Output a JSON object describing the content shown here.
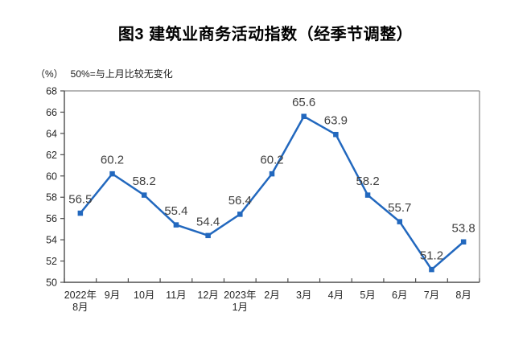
{
  "chart_data": {
    "type": "line",
    "title": "图3  建筑业商务活动指数（经季节调整）",
    "unit_label": "（%）",
    "note": "50%=与上月比较无变化",
    "xlabel": "",
    "ylabel": "（%）",
    "categories": [
      [
        "2022年",
        "8月"
      ],
      [
        "9月"
      ],
      [
        "10月"
      ],
      [
        "11月"
      ],
      [
        "12月"
      ],
      [
        "2023年",
        "1月"
      ],
      [
        "2月"
      ],
      [
        "3月"
      ],
      [
        "4月"
      ],
      [
        "5月"
      ],
      [
        "6月"
      ],
      [
        "7月"
      ],
      [
        "8月"
      ]
    ],
    "values": [
      56.5,
      60.2,
      58.2,
      55.4,
      54.4,
      56.4,
      60.2,
      65.6,
      63.9,
      58.2,
      55.7,
      51.2,
      53.8
    ],
    "ylim": [
      50,
      68
    ],
    "ytick_step": 2,
    "grid": false,
    "legend": "none",
    "marker": "square",
    "colors": {
      "line": "#2268BE",
      "marker": "#2268BE",
      "data_label": "#404040",
      "axis_line": "#4d4d4d",
      "frame_line": "#6e6e6e",
      "tick_text": "#262626",
      "title_text": "#000000",
      "background": "#ffffff"
    }
  }
}
